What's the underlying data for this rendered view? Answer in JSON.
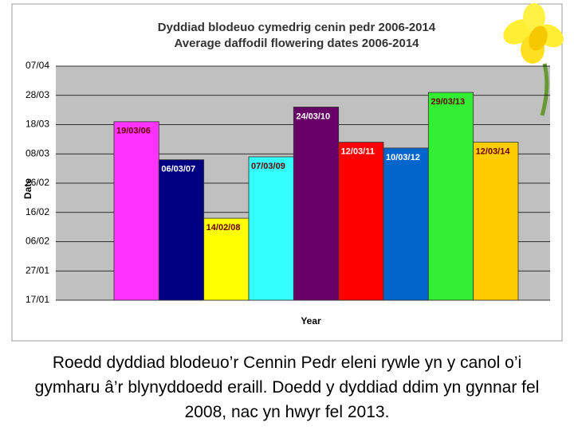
{
  "chart_data": {
    "type": "bar",
    "title": "Dyddiad blodeuo cymedrig cenin pedr 2006-2014",
    "subtitle": "Average daffodil flowering dates 2006-2014",
    "x_label": "Year",
    "y_label": "Date",
    "values": [
      78,
      65,
      45,
      66,
      83,
      71,
      69,
      88,
      71
    ],
    "value_labels": [
      "19/03/06",
      "06/03/07",
      "14/02/08",
      "07/03/09",
      "24/03/10",
      "12/03/11",
      "10/03/12",
      "29/03/13",
      "12/03/14"
    ],
    "colors": [
      "#ff33ff",
      "#000080",
      "#ffff00",
      "#33ffff",
      "#660066",
      "#ff0000",
      "#0066cc",
      "#33ee33",
      "#ffcc00"
    ],
    "ylim": [
      17,
      97
    ],
    "yticks": [
      {
        "value": 17,
        "label": "17/01"
      },
      {
        "value": 27,
        "label": "27/01"
      },
      {
        "value": 37,
        "label": "06/02"
      },
      {
        "value": 47,
        "label": "16/02"
      },
      {
        "value": 57,
        "label": "26/02"
      },
      {
        "value": 67,
        "label": "08/03"
      },
      {
        "value": 77,
        "label": "18/03"
      },
      {
        "value": 87,
        "label": "28/03"
      },
      {
        "value": 97,
        "label": "07/04"
      }
    ],
    "grid": true
  },
  "caption": "Roedd dyddiad blodeuo’r Cennin Pedr eleni rywle yn y canol o’i gymharu â’r blynyddoedd eraill. Doedd y dyddiad ddim yn gynnar fel 2008, nac yn hwyr fel 2013."
}
